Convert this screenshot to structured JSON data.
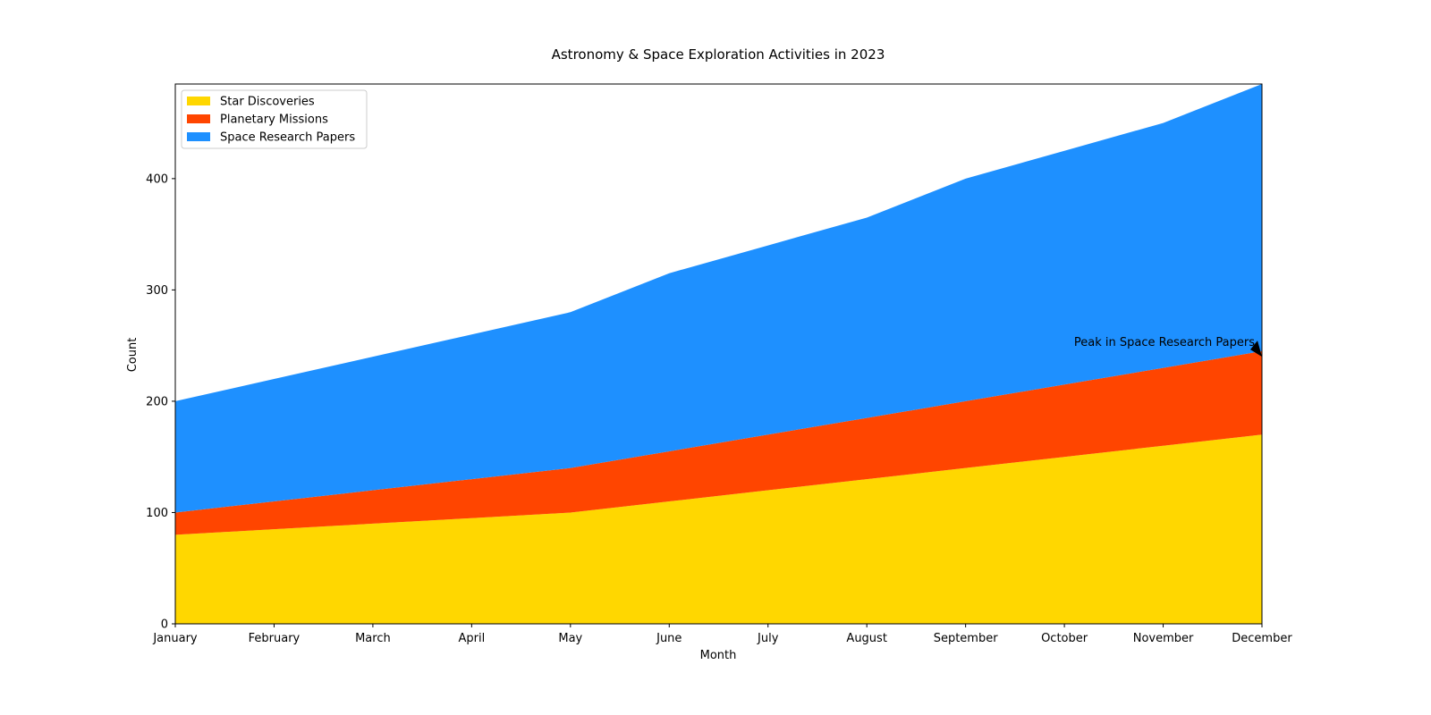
{
  "chart_data": {
    "type": "area",
    "stacked": true,
    "title": "Astronomy & Space Exploration Activities in 2023",
    "xlabel": "Month",
    "ylabel": "Count",
    "categories": [
      "January",
      "February",
      "March",
      "April",
      "May",
      "June",
      "July",
      "August",
      "September",
      "October",
      "November",
      "December"
    ],
    "ylim": [
      0,
      485
    ],
    "yticks": [
      0,
      100,
      200,
      300,
      400
    ],
    "grid": false,
    "legend_position": "top-left",
    "series": [
      {
        "name": "Star Discoveries",
        "color": "#FFD700",
        "values": [
          80,
          85,
          90,
          95,
          100,
          110,
          120,
          130,
          140,
          150,
          160,
          170
        ]
      },
      {
        "name": "Planetary Missions",
        "color": "#FF4500",
        "values": [
          20,
          25,
          30,
          35,
          40,
          45,
          50,
          55,
          60,
          65,
          70,
          75
        ]
      },
      {
        "name": "Space Research Papers",
        "color": "#1E90FF",
        "values": [
          100,
          110,
          120,
          130,
          140,
          160,
          170,
          180,
          200,
          210,
          220,
          240
        ]
      }
    ],
    "annotation": {
      "text": "Peak in Space Research Papers",
      "x": "December",
      "y": 240
    }
  }
}
